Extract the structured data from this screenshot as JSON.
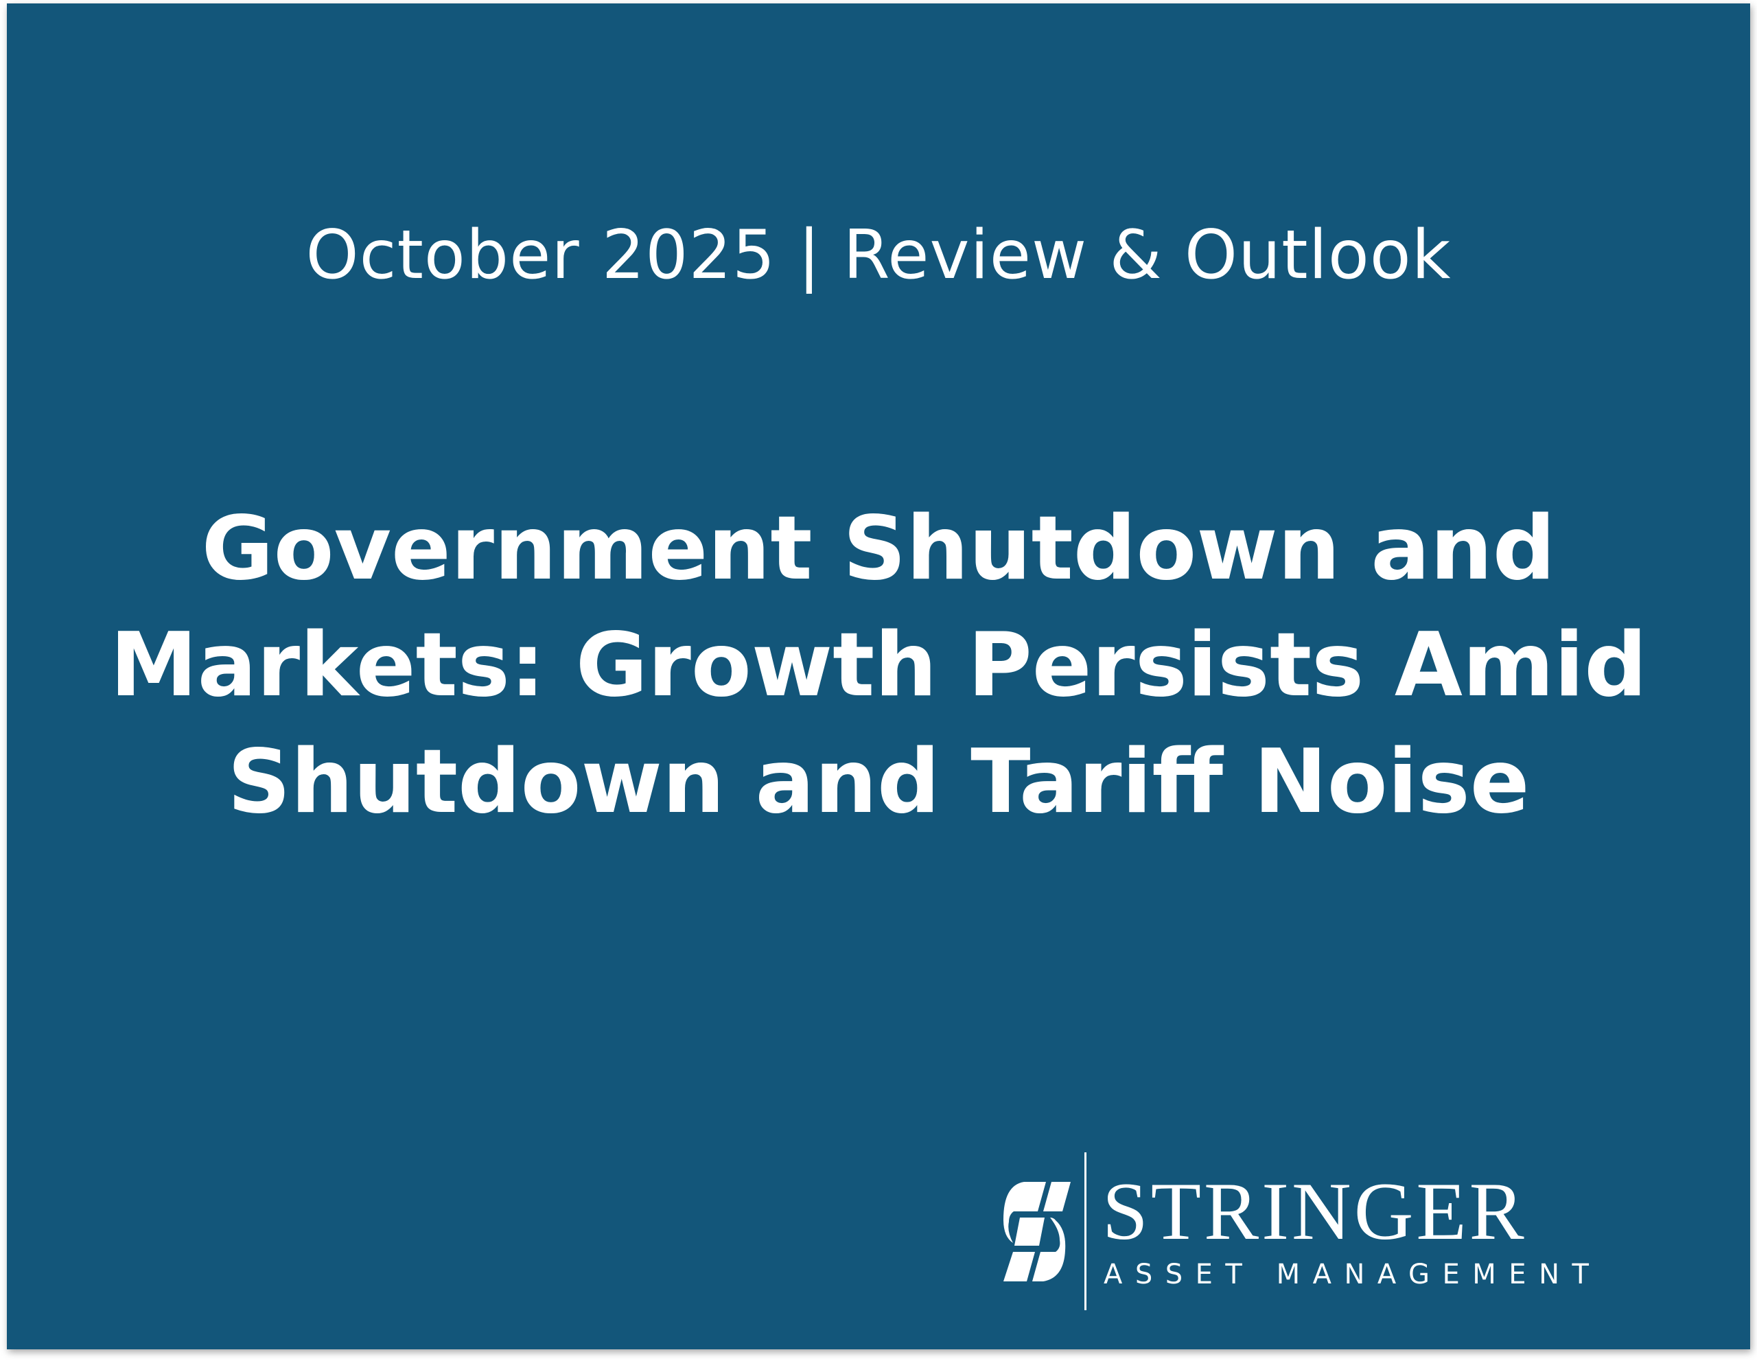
{
  "header": {
    "subtitle": "October 2025 | Review & Outlook"
  },
  "main": {
    "title_lines": [
      "Government Shutdown and",
      "Markets: Growth Persists Amid",
      "Shutdown and Tariff Noise"
    ]
  },
  "logo": {
    "name": "STRINGER",
    "tagline": "ASSET MANAGEMENT",
    "mark_icon": "stringer-s-logo-icon"
  },
  "colors": {
    "background": "#13567a",
    "text": "#ffffff"
  }
}
